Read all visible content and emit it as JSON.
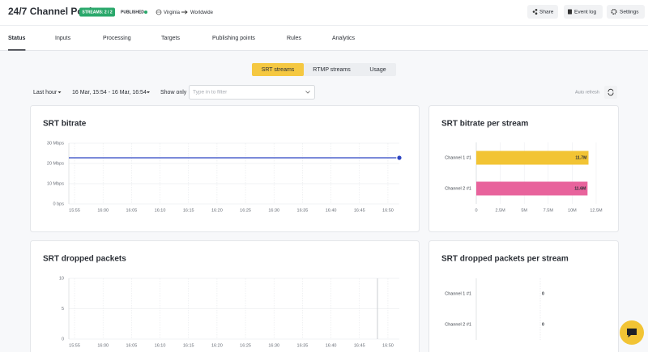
{
  "header": {
    "title": "24/7 Channel Pool",
    "badges": [
      "STREAMS: 2 / 2",
      "PUBLISHED"
    ],
    "route": {
      "from": "Virginia",
      "to": "Worldwide"
    },
    "buttons": [
      "Share",
      "Event log",
      "Settings"
    ]
  },
  "tabs": {
    "items": [
      "Status",
      "Inputs",
      "Processing",
      "Targets",
      "Publishing points",
      "Rules",
      "Analytics"
    ],
    "active": 0
  },
  "subtabs": {
    "items": [
      "SRT streams",
      "RTMP streams",
      "Usage"
    ],
    "active": 0
  },
  "filters": {
    "period": "Last hour",
    "range": "16 Mar, 15:54 - 16 Mar, 16:54",
    "show_only": "Show only",
    "placeholder": "Type in to filter",
    "auto_refresh": "Auto refresh"
  },
  "chart_data": [
    {
      "type": "line",
      "title": "SRT bitrate",
      "x": [
        954,
        1012
      ],
      "series": [
        {
          "color": "#2c44c2",
          "values": [
            22.8,
            22.8
          ]
        }
      ],
      "xlim": [
        954,
        1012
      ],
      "xticks": [
        {
          "value": 955,
          "label": "15:55"
        },
        {
          "value": 960,
          "label": "16:00"
        },
        {
          "value": 965,
          "label": "16:05"
        },
        {
          "value": 970,
          "label": "16:10"
        },
        {
          "value": 975,
          "label": "16:15"
        },
        {
          "value": 980,
          "label": "16:20"
        },
        {
          "value": 985,
          "label": "16:25"
        },
        {
          "value": 990,
          "label": "16:30"
        },
        {
          "value": 995,
          "label": "16:35"
        },
        {
          "value": 1000,
          "label": "16:40"
        },
        {
          "value": 1005,
          "label": "16:45"
        },
        {
          "value": 1010,
          "label": "16:50"
        }
      ],
      "ylim": [
        0,
        30
      ],
      "yticks": [
        {
          "value": 0,
          "label": "0 bps"
        },
        {
          "value": 10,
          "label": "10 Mbps"
        },
        {
          "value": 20,
          "label": "20 Mbps"
        },
        {
          "value": 30,
          "label": "30 Mbps"
        }
      ],
      "grid": true
    },
    {
      "type": "hbar",
      "title": "SRT bitrate per stream",
      "categories": [
        "Channel 1 #1",
        "Channel 2 #1"
      ],
      "values": [
        11.7,
        11.6
      ],
      "value_labels": [
        "11.7M",
        "11.6M"
      ],
      "colors": [
        "#f2c434",
        "#e8639c"
      ],
      "xlim": [
        0,
        12.5
      ],
      "xticks": [
        0,
        {
          "value": 2.5,
          "label": "2.5M"
        },
        {
          "value": 5,
          "label": "5M"
        },
        {
          "value": 7.5,
          "label": "7.5M"
        },
        {
          "value": 10,
          "label": "10M"
        },
        {
          "value": 12.5,
          "label": "12.5M"
        }
      ]
    },
    {
      "type": "line",
      "title": "SRT dropped packets",
      "xlim": [
        954,
        1012
      ],
      "xticks": [
        {
          "value": 955,
          "label": "15:55"
        },
        {
          "value": 960,
          "label": "16:00"
        },
        {
          "value": 965,
          "label": "16:05"
        },
        {
          "value": 970,
          "label": "16:10"
        },
        {
          "value": 975,
          "label": "16:15"
        },
        {
          "value": 980,
          "label": "16:20"
        },
        {
          "value": 985,
          "label": "16:25"
        },
        {
          "value": 990,
          "label": "16:30"
        },
        {
          "value": 995,
          "label": "16:35"
        },
        {
          "value": 1000,
          "label": "16:40"
        },
        {
          "value": 1005,
          "label": "16:45"
        },
        {
          "value": 1010,
          "label": "16:50"
        }
      ],
      "ylim": [
        0,
        10
      ],
      "yticks": [
        0,
        5,
        10
      ],
      "grid": true
    },
    {
      "type": "hbar",
      "title": "SRT dropped packets per stream",
      "categories": [
        "Channel 1 #1",
        "Channel 2 #1"
      ],
      "values": [
        0,
        0
      ]
    }
  ]
}
